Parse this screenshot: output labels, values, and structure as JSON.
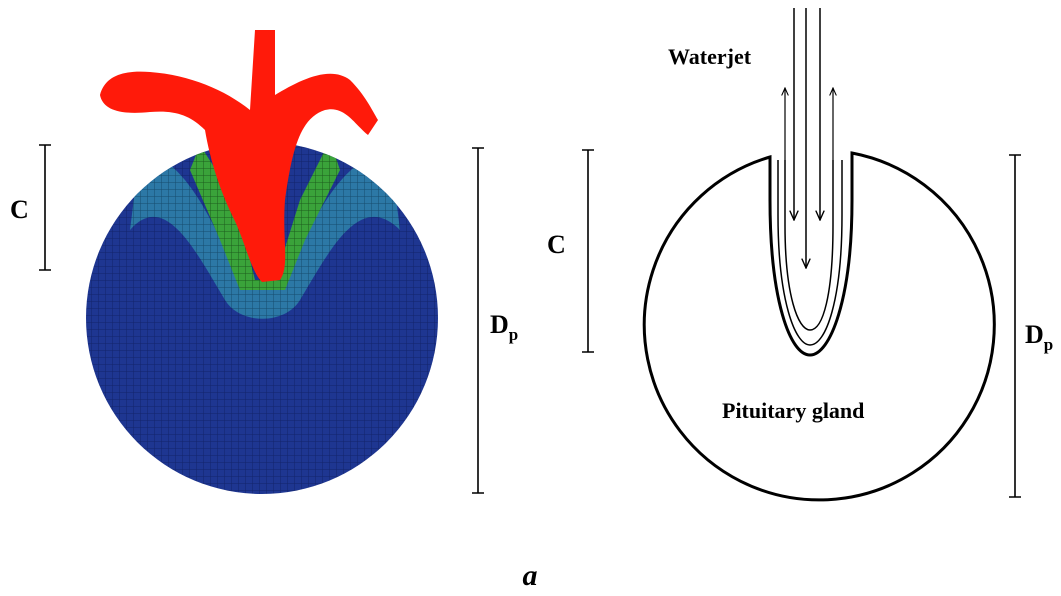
{
  "left": {
    "depth_label": "C",
    "diameter_label": {
      "main": "D",
      "sub": "p"
    }
  },
  "right": {
    "jet_label": "Waterjet",
    "gland_label": "Pituitary gland",
    "depth_label": "C",
    "diameter_label": {
      "main": "D",
      "sub": "p"
    }
  },
  "caption": "a"
}
